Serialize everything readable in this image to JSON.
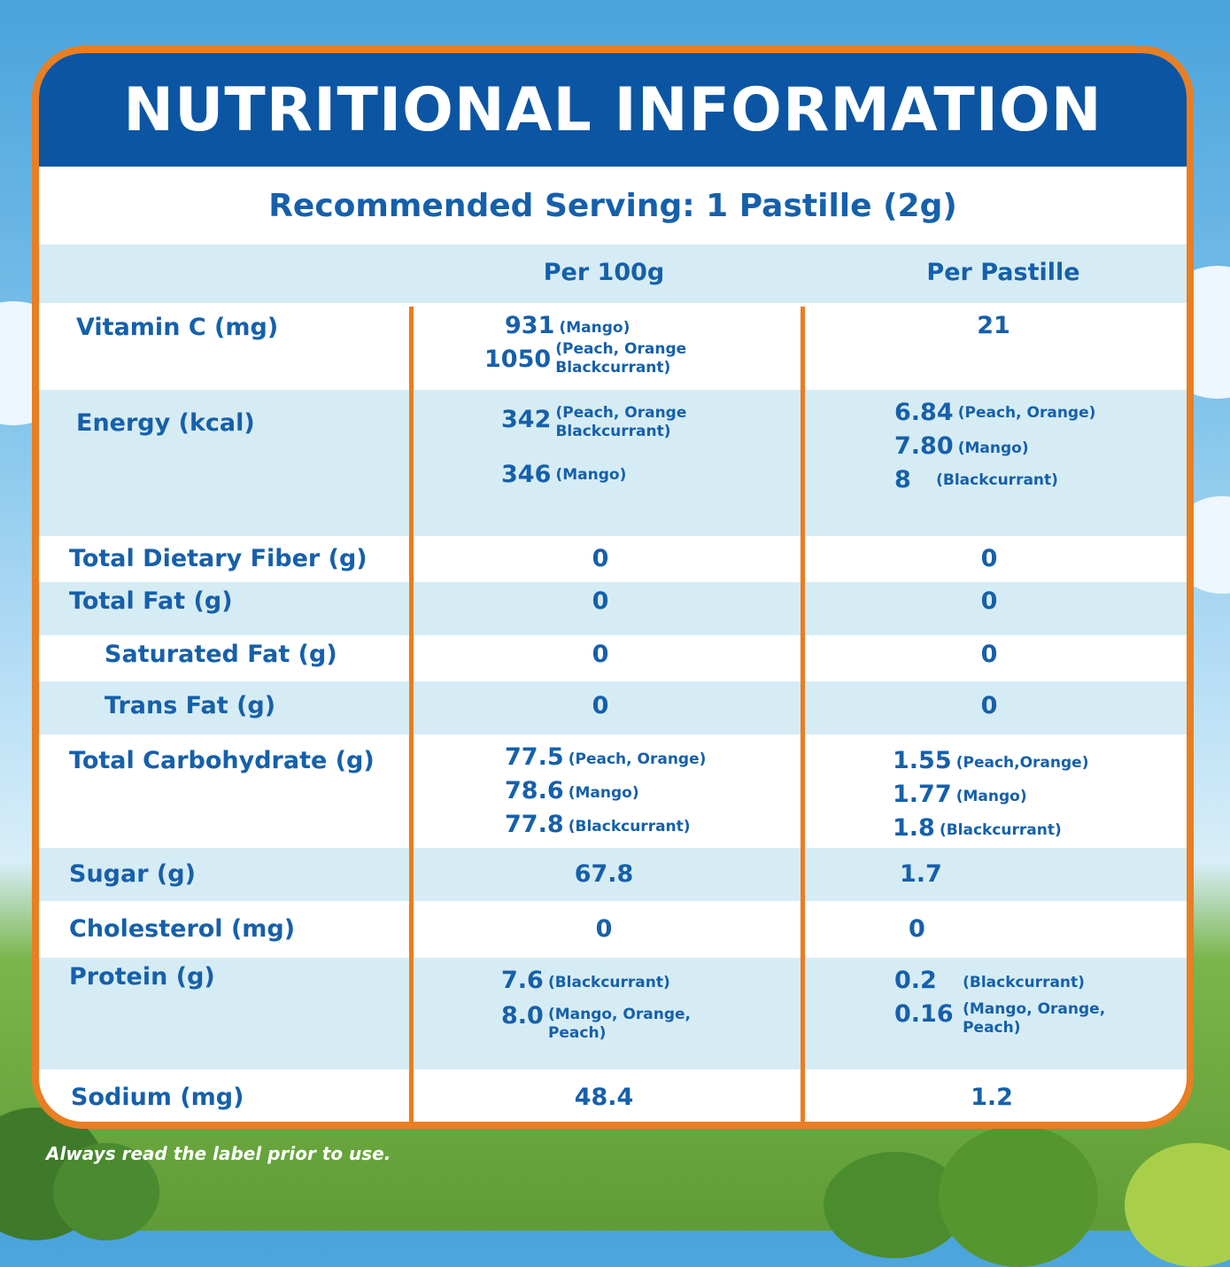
{
  "title": "NUTRITIONAL INFORMATION",
  "serving": "Recommended Serving: 1 Pastille (2g)",
  "columns": {
    "per100": "Per 100g",
    "perPastille": "Per Pastille"
  },
  "rows": {
    "vitc": {
      "label": "Vitamin C (mg)",
      "p100": [
        {
          "v": "931",
          "n": "(Mango)"
        },
        {
          "v": "1050",
          "n": "(Peach, Orange\nBlackcurrant)"
        }
      ],
      "pp": "21"
    },
    "energy": {
      "label": "Energy (kcal)",
      "p100": [
        {
          "v": "342",
          "n": "(Peach, Orange\nBlackcurrant)"
        },
        {
          "v": "346",
          "n": "(Mango)"
        }
      ],
      "pp": [
        {
          "v": "6.84",
          "n": "(Peach, Orange)"
        },
        {
          "v": "7.80",
          "n": "(Mango)"
        },
        {
          "v": "8",
          "n": "(Blackcurrant)"
        }
      ]
    },
    "fiber": {
      "label": "Total Dietary Fiber (g)",
      "p100": "0",
      "pp": "0"
    },
    "fat": {
      "label": "Total Fat (g)",
      "p100": "0",
      "pp": "0"
    },
    "satfat": {
      "label": "Saturated Fat (g)",
      "p100": "0",
      "pp": "0"
    },
    "transfat": {
      "label": "Trans Fat (g)",
      "p100": "0",
      "pp": "0"
    },
    "carb": {
      "label": "Total Carbohydrate (g)",
      "p100": [
        {
          "v": "77.5",
          "n": "(Peach, Orange)"
        },
        {
          "v": "78.6",
          "n": "(Mango)"
        },
        {
          "v": "77.8",
          "n": "(Blackcurrant)"
        }
      ],
      "pp": [
        {
          "v": "1.55",
          "n": "(Peach,Orange)"
        },
        {
          "v": "1.77",
          "n": "(Mango)"
        },
        {
          "v": "1.8",
          "n": "(Blackcurrant)"
        }
      ]
    },
    "sugar": {
      "label": "Sugar (g)",
      "p100": "67.8",
      "pp": "1.7"
    },
    "chol": {
      "label": "Cholesterol (mg)",
      "p100": "0",
      "pp": "0"
    },
    "protein": {
      "label": "Protein (g)",
      "p100": [
        {
          "v": "7.6",
          "n": "(Blackcurrant)"
        },
        {
          "v": "8.0",
          "n": "(Mango, Orange,\nPeach)"
        }
      ],
      "pp": [
        {
          "v": "0.2",
          "n": "(Blackcurrant)"
        },
        {
          "v": "0.16",
          "n": "(Mango, Orange,\nPeach)"
        }
      ]
    },
    "sodium": {
      "label": "Sodium (mg)",
      "p100": "48.4",
      "pp": "1.2"
    }
  },
  "disclaimer": "Always read the label prior to use.",
  "colors": {
    "brand_blue": "#0b55a3",
    "text_blue": "#1660ab",
    "border_orange": "#e97e22",
    "row_shade": "#d6ecf5"
  }
}
